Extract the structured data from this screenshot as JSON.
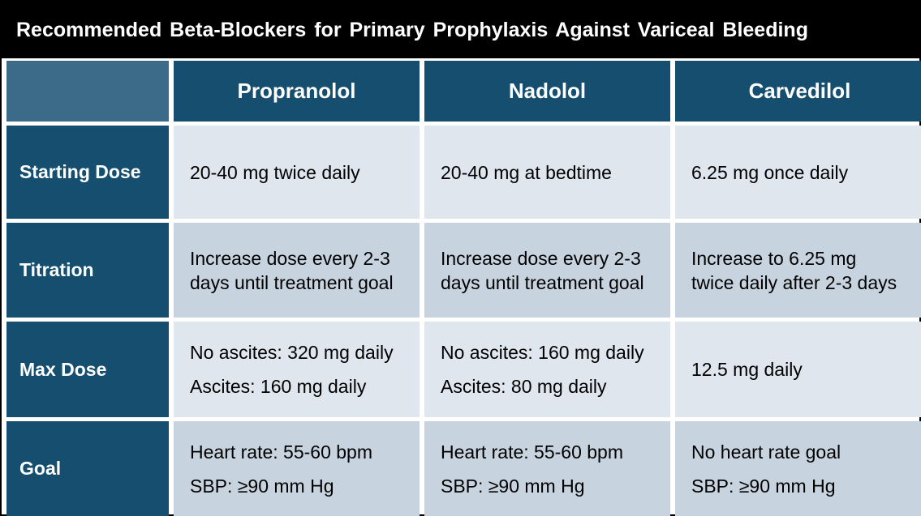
{
  "title": "Recommended Beta-Blockers for Primary Prophylaxis Against Variceal Bleeding",
  "columns": [
    "Propranolol",
    "Nadolol",
    "Carvedilol"
  ],
  "rows": [
    {
      "label": "Starting Dose",
      "cells": [
        [
          "20-40 mg twice daily"
        ],
        [
          "20-40 mg at bedtime"
        ],
        [
          "6.25 mg once daily"
        ]
      ]
    },
    {
      "label": "Titration",
      "cells": [
        [
          "Increase dose every 2-3",
          "days until treatment goal"
        ],
        [
          "Increase dose every 2-3",
          "days until treatment goal"
        ],
        [
          "Increase to 6.25 mg",
          "twice daily after 2-3 days"
        ]
      ]
    },
    {
      "label": "Max Dose",
      "cells": [
        [
          "No ascites: 320 mg daily",
          "Ascites: 160 mg daily"
        ],
        [
          "No ascites: 160 mg daily",
          "Ascites: 80 mg daily"
        ],
        [
          "12.5 mg daily"
        ]
      ]
    },
    {
      "label": "Goal",
      "cells": [
        [
          "Heart rate: 55-60 bpm",
          "SBP: ≥90 mm Hg"
        ],
        [
          "Heart rate: 55-60 bpm",
          "SBP: ≥90 mm Hg"
        ],
        [
          "No heart rate goal",
          "SBP: ≥90 mm Hg"
        ]
      ]
    }
  ],
  "colors": {
    "title_bg": "#000000",
    "header_bg": "#154e6e",
    "corner_bg": "#3b6b88",
    "cell_light": "#dfe6ee",
    "cell_dark": "#c7d3de"
  }
}
